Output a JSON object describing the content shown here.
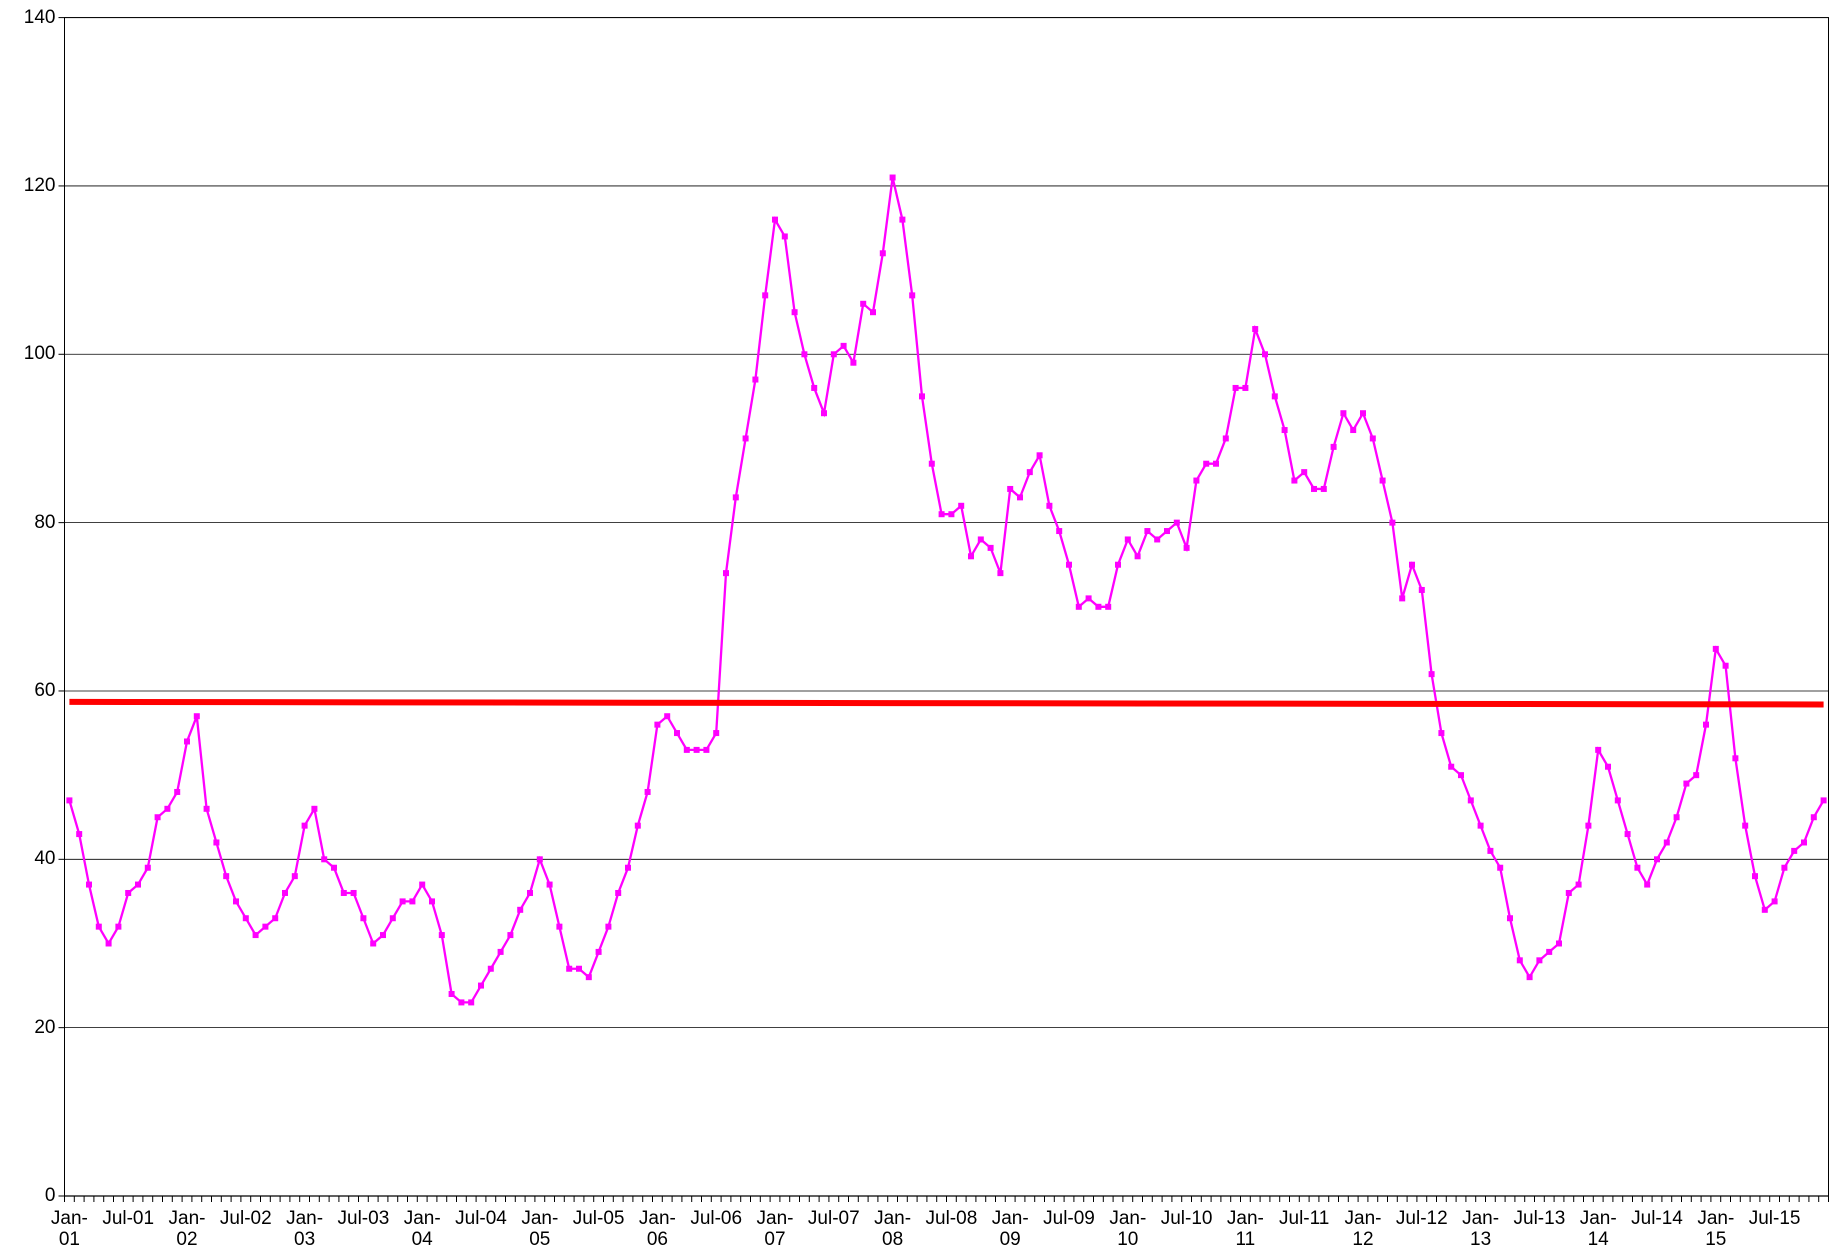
{
  "chart_data": {
    "type": "line",
    "categories": [
      "Jan-01",
      null,
      null,
      null,
      null,
      null,
      "Jul-01",
      null,
      null,
      null,
      null,
      null,
      "Jan-02",
      null,
      null,
      null,
      null,
      null,
      "Jul-02",
      null,
      null,
      null,
      null,
      null,
      "Jan-03",
      null,
      null,
      null,
      null,
      null,
      "Jul-03",
      null,
      null,
      null,
      null,
      null,
      "Jan-04",
      null,
      null,
      null,
      null,
      null,
      "Jul-04",
      null,
      null,
      null,
      null,
      null,
      "Jan-05",
      null,
      null,
      null,
      null,
      null,
      "Jul-05",
      null,
      null,
      null,
      null,
      null,
      "Jan-06",
      null,
      null,
      null,
      null,
      null,
      "Jul-06",
      null,
      null,
      null,
      null,
      null,
      "Jan-07",
      null,
      null,
      null,
      null,
      null,
      "Jul-07",
      null,
      null,
      null,
      null,
      null,
      "Jan-08",
      null,
      null,
      null,
      null,
      null,
      "Jul-08",
      null,
      null,
      null,
      null,
      null,
      "Jan-09",
      null,
      null,
      null,
      null,
      null,
      "Jul-09",
      null,
      null,
      null,
      null,
      null,
      "Jan-10",
      null,
      null,
      null,
      null,
      null,
      "Jul-10",
      null,
      null,
      null,
      null,
      null,
      "Jan-11",
      null,
      null,
      null,
      null,
      null,
      "Jul-11",
      null,
      null,
      null,
      null,
      null,
      "Jan-12",
      null,
      null,
      null,
      null,
      null,
      "Jul-12",
      null,
      null,
      null,
      null,
      null,
      "Jan-13",
      null,
      null,
      null,
      null,
      null,
      "Jul-13",
      null,
      null,
      null,
      null,
      null,
      "Jan-14",
      null,
      null,
      null,
      null,
      null,
      "Jul-14",
      null,
      null,
      null,
      null,
      null,
      "Jan-15",
      null,
      null,
      null,
      null,
      null,
      "Jul-15",
      null,
      null,
      null,
      null,
      null
    ],
    "series": [
      {
        "color": "#ff00ff",
        "values": [
          47,
          43,
          37,
          32,
          30,
          32,
          36,
          37,
          39,
          45,
          46,
          48,
          54,
          57,
          46,
          42,
          38,
          35,
          33,
          31,
          32,
          33,
          36,
          38,
          44,
          46,
          40,
          39,
          36,
          36,
          33,
          30,
          31,
          33,
          35,
          35,
          37,
          35,
          31,
          24,
          23,
          23,
          25,
          27,
          29,
          31,
          34,
          36,
          40,
          37,
          32,
          27,
          27,
          26,
          29,
          32,
          36,
          39,
          44,
          48,
          56,
          57,
          55,
          53,
          53,
          53,
          55,
          74,
          83,
          90,
          97,
          107,
          116,
          114,
          105,
          100,
          96,
          93,
          100,
          101,
          99,
          106,
          105,
          112,
          121,
          116,
          107,
          95,
          87,
          81,
          81,
          82,
          76,
          78,
          77,
          74,
          84,
          83,
          86,
          88,
          82,
          79,
          75,
          70,
          71,
          70,
          70,
          75,
          78,
          76,
          79,
          78,
          79,
          80,
          77,
          85,
          87,
          87,
          90,
          96,
          96,
          103,
          100,
          95,
          91,
          85,
          86,
          84,
          84,
          89,
          93,
          91,
          93,
          90,
          85,
          80,
          71,
          75,
          72,
          62,
          55,
          51,
          50,
          47,
          44,
          41,
          39,
          33,
          28,
          26,
          28,
          29,
          30,
          36,
          37,
          44,
          53,
          51,
          47,
          43,
          39,
          37,
          40,
          42,
          45,
          49,
          50,
          56,
          65,
          63,
          52,
          44,
          38,
          34,
          35,
          39,
          41,
          42,
          45,
          47
        ]
      }
    ],
    "reference_line": {
      "color": "#ff0000",
      "values": [
        58.7,
        58.4
      ]
    },
    "ylim": [
      0,
      140
    ],
    "yticks": [
      0,
      20,
      40,
      60,
      80,
      100,
      120,
      140
    ],
    "grid": true
  }
}
